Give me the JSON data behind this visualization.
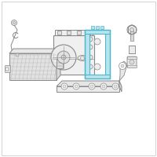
{
  "bg_color": "#ffffff",
  "border_color": "#cccccc",
  "line_color": "#888888",
  "line_color_dark": "#666666",
  "highlight_stroke": "#4db8cc",
  "highlight_fill": "#b8e4ed",
  "fig_width": 2.0,
  "fig_height": 2.0,
  "dpi": 100
}
